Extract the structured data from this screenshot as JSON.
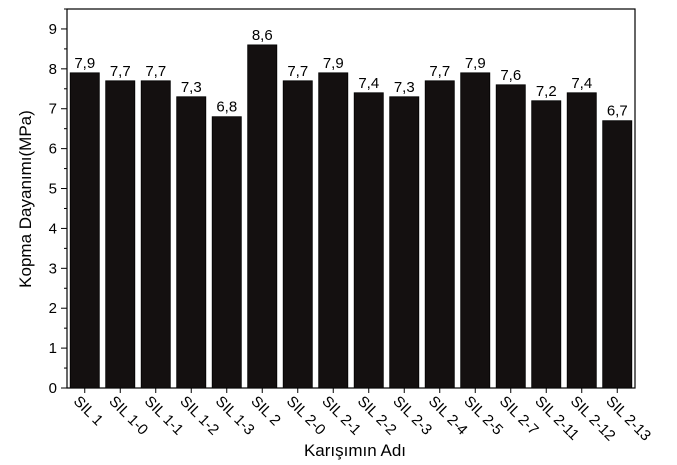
{
  "chart_data": {
    "type": "bar",
    "title": "",
    "xlabel": "Karışımın Adı",
    "ylabel": "Kopma Dayanımı(MPa)",
    "ylim": [
      0,
      9.5
    ],
    "yticks": [
      "0",
      "1",
      "2",
      "3",
      "4",
      "5",
      "6",
      "7",
      "8",
      "9"
    ],
    "categories": [
      "SIL 1",
      "SIL 1-0",
      "SIL 1-1",
      "SIL 1-2",
      "SIL 1-3",
      "SIL 2",
      "SIL 2-0",
      "SIL 2-1",
      "SIL 2-2",
      "SIL 2-3",
      "SIL 2-4",
      "SIL 2-5",
      "SIL 2-7",
      "SIL 2-11",
      "SIL 2-12",
      "SIL 2-13"
    ],
    "values": [
      7.9,
      7.7,
      7.7,
      7.3,
      6.8,
      8.6,
      7.7,
      7.9,
      7.4,
      7.3,
      7.7,
      7.9,
      7.6,
      7.2,
      7.4,
      6.7
    ],
    "value_labels": [
      "7,9",
      "7,7",
      "7,7",
      "7,3",
      "6,8",
      "8,6",
      "7,7",
      "7,9",
      "7,4",
      "7,3",
      "7,7",
      "7,9",
      "7,6",
      "7,2",
      "7,4",
      "6,7"
    ],
    "bar_color": "#141010",
    "grid": false,
    "legend": "none"
  }
}
